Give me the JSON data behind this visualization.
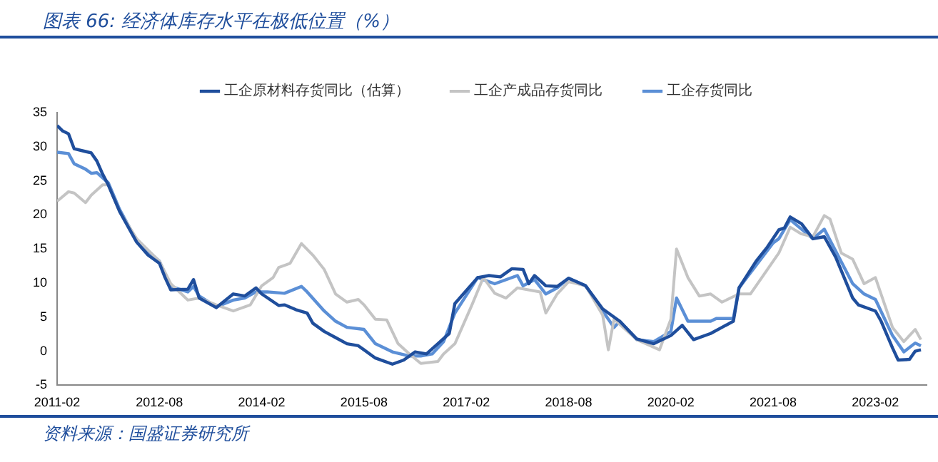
{
  "chart_data": {
    "type": "line",
    "title": "图表 66: 经济体库存水平在极低位置（%）",
    "annotations": [
      "资料来源：国盛证券研究所"
    ],
    "xlim": [
      "2011-02",
      "2023-11"
    ],
    "xticks": [
      "2011-02",
      "2012-08",
      "2014-02",
      "2015-08",
      "2017-02",
      "2018-08",
      "2020-02",
      "2021-08",
      "2023-02"
    ],
    "ylim": [
      -5,
      35
    ],
    "yticks": [
      -5,
      0,
      5,
      10,
      15,
      20,
      25,
      30,
      35
    ],
    "grid": false,
    "legend": "top",
    "marker": "none",
    "line_style": "solid",
    "series": [
      {
        "name": "工企原材料存货同比（估算）",
        "color": "#1f4e9c",
        "x": [
          "2011-02",
          "2011-03",
          "2011-04",
          "2011-05",
          "2011-07",
          "2011-08",
          "2011-09",
          "2011-10",
          "2011-11",
          "2012-01",
          "2012-04",
          "2012-06",
          "2012-08",
          "2012-09",
          "2012-10",
          "2013-01",
          "2013-02",
          "2013-03",
          "2013-06",
          "2013-09",
          "2013-11",
          "2014-01",
          "2014-02",
          "2014-05",
          "2014-06",
          "2014-08",
          "2014-10",
          "2014-11",
          "2015-01",
          "2015-03",
          "2015-05",
          "2015-07",
          "2015-10",
          "2016-01",
          "2016-03",
          "2016-05",
          "2016-07",
          "2016-09",
          "2016-11",
          "2016-12",
          "2017-04",
          "2017-06",
          "2017-08",
          "2017-10",
          "2017-12",
          "2018-01",
          "2018-02",
          "2018-04",
          "2018-06",
          "2018-08",
          "2018-11",
          "2019-02",
          "2019-04",
          "2019-05",
          "2019-08",
          "2019-11",
          "2020-02",
          "2020-04",
          "2020-06",
          "2020-09",
          "2020-11",
          "2021-01",
          "2021-02",
          "2021-05",
          "2021-07",
          "2021-09",
          "2021-10",
          "2021-11",
          "2022-01",
          "2022-03",
          "2022-05",
          "2022-07",
          "2022-10",
          "2022-11",
          "2023-02",
          "2023-03",
          "2023-05",
          "2023-06",
          "2023-08",
          "2023-09",
          "2023-10"
        ],
        "values": [
          33.1,
          32.3,
          31.9,
          29.7,
          29.3,
          29.1,
          27.9,
          26.0,
          24.4,
          20.5,
          16.0,
          14.1,
          12.9,
          10.8,
          9.0,
          9.1,
          10.5,
          7.8,
          6.4,
          8.4,
          8.1,
          9.3,
          8.4,
          6.7,
          6.8,
          6.1,
          5.6,
          4.1,
          2.9,
          2.0,
          1.1,
          0.8,
          -1.0,
          -1.9,
          -1.3,
          -0.1,
          -0.4,
          1.1,
          2.6,
          7.0,
          10.8,
          11.1,
          10.9,
          12.1,
          12.0,
          9.9,
          11.1,
          9.6,
          9.5,
          10.7,
          9.6,
          6.2,
          5.0,
          4.4,
          1.8,
          1.1,
          2.3,
          3.8,
          1.7,
          2.6,
          3.5,
          4.4,
          9.3,
          13.2,
          15.3,
          17.8,
          18.1,
          19.7,
          18.7,
          16.5,
          16.8,
          13.8,
          7.8,
          6.8,
          5.9,
          4.4,
          0.5,
          -1.3,
          -1.2,
          0.0,
          0.2
        ]
      },
      {
        "name": "工企产成品存货同比",
        "color": "#c4c4c4",
        "x": [
          "2011-02",
          "2011-04",
          "2011-05",
          "2011-07",
          "2011-08",
          "2011-10",
          "2011-11",
          "2012-01",
          "2012-04",
          "2012-08",
          "2012-10",
          "2013-01",
          "2013-03",
          "2013-06",
          "2013-09",
          "2013-12",
          "2014-02",
          "2014-04",
          "2014-05",
          "2014-07",
          "2014-09",
          "2014-11",
          "2015-01",
          "2015-03",
          "2015-05",
          "2015-07",
          "2015-08",
          "2015-10",
          "2015-12",
          "2016-02",
          "2016-04",
          "2016-06",
          "2016-09",
          "2016-10",
          "2016-12",
          "2017-03",
          "2017-05",
          "2017-07",
          "2017-09",
          "2017-11",
          "2018-03",
          "2018-04",
          "2018-06",
          "2018-08",
          "2018-11",
          "2019-02",
          "2019-03",
          "2019-04",
          "2019-08",
          "2019-12",
          "2020-02",
          "2020-03",
          "2020-05",
          "2020-07",
          "2020-09",
          "2020-11",
          "2021-02",
          "2021-04",
          "2021-07",
          "2021-09",
          "2021-11",
          "2022-01",
          "2022-03",
          "2022-05",
          "2022-06",
          "2022-08",
          "2022-10",
          "2022-12",
          "2023-02",
          "2023-05",
          "2023-07",
          "2023-09",
          "2023-10"
        ],
        "values": [
          22.0,
          23.4,
          23.2,
          21.8,
          22.9,
          24.4,
          24.4,
          20.5,
          16.5,
          13.2,
          9.9,
          7.5,
          7.8,
          6.8,
          5.9,
          6.8,
          9.6,
          10.8,
          12.3,
          12.9,
          15.8,
          14.1,
          12.0,
          8.4,
          7.2,
          7.6,
          6.8,
          4.7,
          4.6,
          1.1,
          -0.4,
          -1.8,
          -1.5,
          -0.4,
          1.1,
          6.8,
          10.8,
          8.5,
          7.8,
          9.3,
          8.7,
          5.6,
          8.4,
          10.2,
          9.6,
          5.3,
          0.2,
          4.7,
          1.7,
          0.2,
          4.7,
          15.0,
          10.8,
          8.1,
          8.4,
          7.2,
          8.4,
          8.4,
          12.0,
          14.4,
          18.2,
          17.2,
          16.8,
          19.9,
          19.4,
          14.4,
          13.5,
          9.9,
          10.8,
          3.5,
          1.4,
          3.2,
          1.7
        ]
      },
      {
        "name": "工企存货同比",
        "color": "#5b8fd6",
        "x": [
          "2011-02",
          "2011-04",
          "2011-05",
          "2011-07",
          "2011-08",
          "2011-09",
          "2011-11",
          "2012-01",
          "2012-04",
          "2012-08",
          "2012-10",
          "2013-01",
          "2013-02",
          "2013-03",
          "2013-06",
          "2013-09",
          "2013-11",
          "2014-01",
          "2014-03",
          "2014-06",
          "2014-09",
          "2014-10",
          "2015-01",
          "2015-03",
          "2015-05",
          "2015-08",
          "2015-10",
          "2016-01",
          "2016-04",
          "2016-06",
          "2016-08",
          "2016-10",
          "2016-12",
          "2017-04",
          "2017-07",
          "2017-11",
          "2017-12",
          "2018-02",
          "2018-04",
          "2018-06",
          "2018-08",
          "2018-11",
          "2019-02",
          "2019-04",
          "2019-05",
          "2019-08",
          "2019-11",
          "2020-02",
          "2020-03",
          "2020-05",
          "2020-09",
          "2020-10",
          "2021-01",
          "2021-02",
          "2021-05",
          "2021-08",
          "2021-09",
          "2021-11",
          "2022-02",
          "2022-03",
          "2022-05",
          "2022-07",
          "2022-10",
          "2022-12",
          "2023-02",
          "2023-05",
          "2023-07",
          "2023-09",
          "2023-10"
        ],
        "values": [
          29.2,
          29.0,
          27.5,
          26.7,
          26.1,
          26.2,
          24.7,
          20.8,
          16.2,
          13.2,
          9.5,
          8.7,
          9.5,
          8.1,
          6.5,
          7.5,
          7.8,
          8.7,
          8.7,
          8.5,
          9.5,
          8.7,
          5.9,
          4.4,
          3.5,
          3.2,
          1.1,
          -0.1,
          -0.7,
          -0.7,
          -0.4,
          1.4,
          5.6,
          10.8,
          9.9,
          11.1,
          9.6,
          10.5,
          8.4,
          9.3,
          10.7,
          9.6,
          5.9,
          3.5,
          4.4,
          1.7,
          1.4,
          2.9,
          7.8,
          4.4,
          4.4,
          4.8,
          4.8,
          9.3,
          12.6,
          15.9,
          16.5,
          19.3,
          17.2,
          16.5,
          17.9,
          14.7,
          9.9,
          8.4,
          7.6,
          2.3,
          -0.1,
          1.2,
          0.8
        ]
      }
    ]
  }
}
